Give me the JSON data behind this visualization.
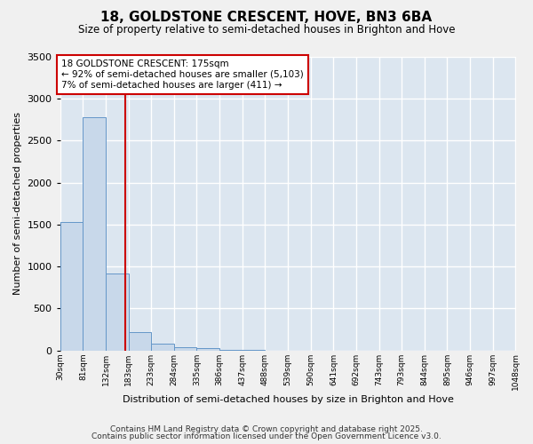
{
  "title": "18, GOLDSTONE CRESCENT, HOVE, BN3 6BA",
  "subtitle": "Size of property relative to semi-detached houses in Brighton and Hove",
  "xlabel": "Distribution of semi-detached houses by size in Brighton and Hove",
  "ylabel": "Number of semi-detached properties",
  "bar_color": "#c8d8ea",
  "bar_edge_color": "#6496c8",
  "fig_background_color": "#f0f0f0",
  "axes_background_color": "#dce6f0",
  "grid_color": "#ffffff",
  "annotation_box_color": "#cc0000",
  "red_line_x": 175,
  "annotation_title": "18 GOLDSTONE CRESCENT: 175sqm",
  "annotation_line1": "← 92% of semi-detached houses are smaller (5,103)",
  "annotation_line2": "7% of semi-detached houses are larger (411) →",
  "bin_edges": [
    30,
    81,
    132,
    183,
    233,
    284,
    335,
    386,
    437,
    488,
    539,
    590,
    641,
    692,
    743,
    793,
    844,
    895,
    946,
    997,
    1048
  ],
  "bin_labels": [
    "30sqm",
    "81sqm",
    "132sqm",
    "183sqm",
    "233sqm",
    "284sqm",
    "335sqm",
    "386sqm",
    "437sqm",
    "488sqm",
    "539sqm",
    "590sqm",
    "641sqm",
    "692sqm",
    "743sqm",
    "793sqm",
    "844sqm",
    "895sqm",
    "946sqm",
    "997sqm",
    "1048sqm"
  ],
  "bar_heights": [
    1530,
    2780,
    920,
    215,
    85,
    35,
    30,
    5,
    2,
    1,
    1,
    0,
    0,
    0,
    0,
    0,
    0,
    0,
    0,
    0
  ],
  "ylim": [
    0,
    3500
  ],
  "yticks": [
    0,
    500,
    1000,
    1500,
    2000,
    2500,
    3000,
    3500
  ],
  "footnote1": "Contains HM Land Registry data © Crown copyright and database right 2025.",
  "footnote2": "Contains public sector information licensed under the Open Government Licence v3.0."
}
